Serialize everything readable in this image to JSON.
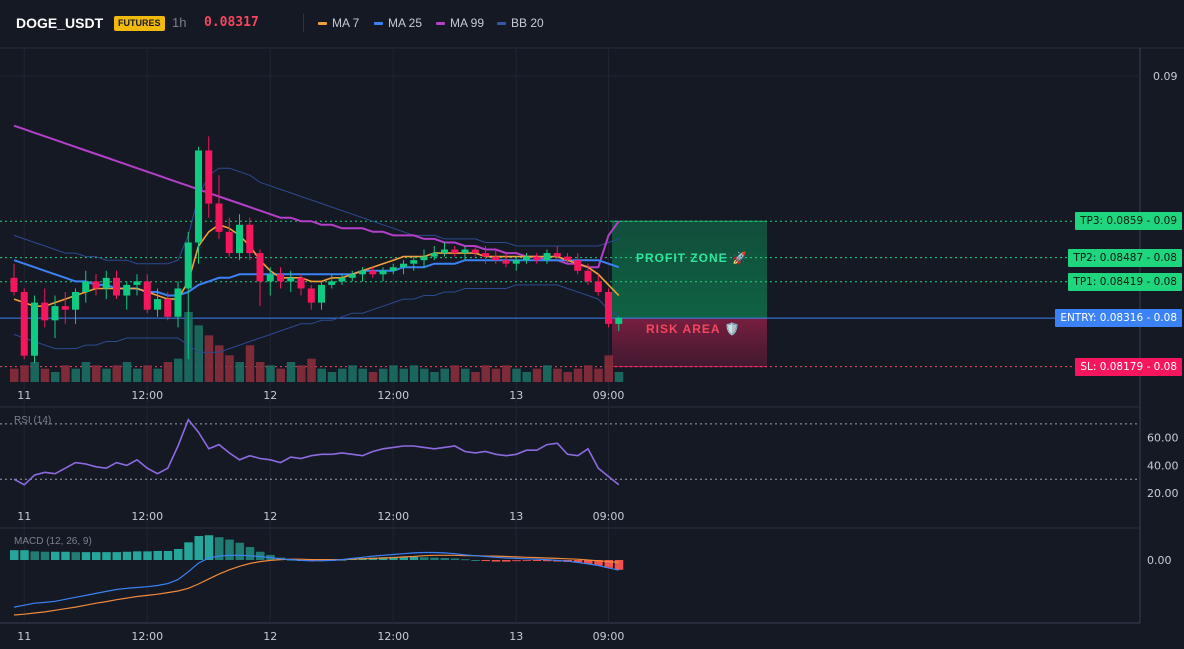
{
  "header": {
    "symbol": "DOGE_USDT",
    "badge": "FUTURES",
    "timeframe": "1h",
    "price": "0.08317",
    "legend": [
      {
        "label": "MA 7",
        "color": "#f0a13a"
      },
      {
        "label": "MA 25",
        "color": "#3b82f6"
      },
      {
        "label": "MA 99",
        "color": "#b43fc8"
      },
      {
        "label": "BB 20",
        "color": "#3557a8"
      }
    ]
  },
  "chart_data": [
    {
      "type": "candlestick",
      "y_axis_ticks": [
        "0.09"
      ],
      "x_ticks": [
        "11",
        "12:00",
        "12",
        "12:00",
        "13",
        "09:00"
      ],
      "candles": [
        [
          0.0843,
          0.0847,
          0.0838,
          0.0839
        ],
        [
          0.0839,
          0.084,
          0.082,
          0.0821
        ],
        [
          0.0821,
          0.0838,
          0.0819,
          0.0836
        ],
        [
          0.0836,
          0.084,
          0.0829,
          0.0831
        ],
        [
          0.0831,
          0.0838,
          0.0826,
          0.0835
        ],
        [
          0.0835,
          0.0839,
          0.083,
          0.0834
        ],
        [
          0.0834,
          0.084,
          0.083,
          0.0839
        ],
        [
          0.0839,
          0.0845,
          0.0836,
          0.0842
        ],
        [
          0.0842,
          0.0844,
          0.0838,
          0.084
        ],
        [
          0.084,
          0.0845,
          0.0837,
          0.0843
        ],
        [
          0.0843,
          0.0845,
          0.0837,
          0.0838
        ],
        [
          0.0838,
          0.0842,
          0.0834,
          0.0841
        ],
        [
          0.0841,
          0.0844,
          0.0838,
          0.0842
        ],
        [
          0.0842,
          0.0844,
          0.0833,
          0.0834
        ],
        [
          0.0834,
          0.084,
          0.0832,
          0.0837
        ],
        [
          0.0837,
          0.0839,
          0.0831,
          0.0832
        ],
        [
          0.0832,
          0.0842,
          0.0829,
          0.084
        ],
        [
          0.084,
          0.0856,
          0.082,
          0.0853
        ],
        [
          0.0853,
          0.088,
          0.0847,
          0.0879
        ],
        [
          0.0879,
          0.0883,
          0.086,
          0.0864
        ],
        [
          0.0864,
          0.0872,
          0.0854,
          0.0856
        ],
        [
          0.0856,
          0.086,
          0.0849,
          0.085
        ],
        [
          0.085,
          0.0861,
          0.0848,
          0.0858
        ],
        [
          0.0858,
          0.086,
          0.0848,
          0.085
        ],
        [
          0.085,
          0.0851,
          0.0835,
          0.0842
        ],
        [
          0.0842,
          0.0846,
          0.0838,
          0.0844
        ],
        [
          0.0844,
          0.0846,
          0.084,
          0.0842
        ],
        [
          0.0842,
          0.0845,
          0.0839,
          0.0843
        ],
        [
          0.0843,
          0.0844,
          0.0838,
          0.084
        ],
        [
          0.084,
          0.0841,
          0.0834,
          0.0836
        ],
        [
          0.0836,
          0.0842,
          0.0834,
          0.0841
        ],
        [
          0.0841,
          0.0844,
          0.084,
          0.0842
        ],
        [
          0.0842,
          0.0844,
          0.0841,
          0.0843
        ],
        [
          0.0843,
          0.0845,
          0.0842,
          0.0844
        ],
        [
          0.0844,
          0.0846,
          0.0842,
          0.0845
        ],
        [
          0.0845,
          0.0846,
          0.0843,
          0.0844
        ],
        [
          0.0844,
          0.0846,
          0.0842,
          0.0845
        ],
        [
          0.0845,
          0.0847,
          0.0844,
          0.0846
        ],
        [
          0.0846,
          0.0848,
          0.0844,
          0.0847
        ],
        [
          0.0847,
          0.0849,
          0.0845,
          0.0848
        ],
        [
          0.0848,
          0.0851,
          0.0846,
          0.0849
        ],
        [
          0.0849,
          0.0852,
          0.0848,
          0.085
        ],
        [
          0.085,
          0.0853,
          0.0849,
          0.0851
        ],
        [
          0.0851,
          0.0852,
          0.0849,
          0.085
        ],
        [
          0.085,
          0.0852,
          0.0848,
          0.0851
        ],
        [
          0.0851,
          0.0852,
          0.0849,
          0.085
        ],
        [
          0.085,
          0.0852,
          0.0847,
          0.0849
        ],
        [
          0.0849,
          0.0851,
          0.0847,
          0.0848
        ],
        [
          0.0848,
          0.085,
          0.0846,
          0.0847
        ],
        [
          0.0847,
          0.0849,
          0.0845,
          0.0848
        ],
        [
          0.0848,
          0.085,
          0.0847,
          0.0849
        ],
        [
          0.0849,
          0.085,
          0.0847,
          0.0848
        ],
        [
          0.0848,
          0.0851,
          0.0847,
          0.085
        ],
        [
          0.085,
          0.0852,
          0.0848,
          0.0849
        ],
        [
          0.0849,
          0.085,
          0.0847,
          0.0848
        ],
        [
          0.0848,
          0.085,
          0.0844,
          0.0845
        ],
        [
          0.0845,
          0.0847,
          0.0841,
          0.0842
        ],
        [
          0.0842,
          0.0844,
          0.0838,
          0.0839
        ],
        [
          0.0839,
          0.084,
          0.0829,
          0.083
        ],
        [
          0.083,
          0.0832,
          0.0828,
          0.08317
        ]
      ],
      "volume": [
        4,
        5,
        6,
        4,
        3,
        5,
        4,
        6,
        5,
        4,
        5,
        6,
        4,
        5,
        4,
        6,
        7,
        21,
        17,
        14,
        11,
        8,
        6,
        11,
        6,
        5,
        4,
        6,
        5,
        7,
        4,
        3,
        4,
        5,
        4,
        3,
        4,
        5,
        4,
        5,
        4,
        3,
        4,
        5,
        4,
        3,
        5,
        4,
        5,
        4,
        3,
        4,
        5,
        4,
        3,
        4,
        5,
        4,
        8,
        3
      ],
      "ma7": [
        0.0837,
        0.0836,
        0.0835,
        0.0835,
        0.0836,
        0.0837,
        0.0838,
        0.0839,
        0.084,
        0.084,
        0.084,
        0.084,
        0.084,
        0.0839,
        0.0838,
        0.0837,
        0.0837,
        0.0842,
        0.0852,
        0.0856,
        0.0858,
        0.0857,
        0.0855,
        0.0852,
        0.0848,
        0.0845,
        0.0843,
        0.0843,
        0.0843,
        0.0842,
        0.0842,
        0.0843,
        0.0843,
        0.0844,
        0.0845,
        0.0846,
        0.0847,
        0.0848,
        0.0849,
        0.0849,
        0.0849,
        0.085,
        0.085,
        0.085,
        0.085,
        0.085,
        0.0849,
        0.0849,
        0.0849,
        0.0849,
        0.0849,
        0.0849,
        0.0849,
        0.0849,
        0.0848,
        0.0847,
        0.0846,
        0.0844,
        0.0841,
        0.0838
      ],
      "ma25": [
        0.0848,
        0.0847,
        0.0846,
        0.0845,
        0.0844,
        0.0843,
        0.0842,
        0.0842,
        0.0841,
        0.0841,
        0.084,
        0.084,
        0.084,
        0.0839,
        0.0839,
        0.0838,
        0.0838,
        0.0839,
        0.0841,
        0.0842,
        0.0843,
        0.0843,
        0.0844,
        0.0844,
        0.0844,
        0.0844,
        0.0844,
        0.0844,
        0.0844,
        0.0844,
        0.0844,
        0.0844,
        0.0844,
        0.0844,
        0.0845,
        0.0845,
        0.0845,
        0.0845,
        0.0846,
        0.0846,
        0.0846,
        0.0847,
        0.0847,
        0.0847,
        0.0848,
        0.0848,
        0.0848,
        0.0848,
        0.0848,
        0.0848,
        0.0848,
        0.0848,
        0.0848,
        0.0848,
        0.0848,
        0.0848,
        0.0848,
        0.0848,
        0.0847,
        0.0846
      ],
      "ma99": [
        0.0886,
        0.0885,
        0.0884,
        0.0883,
        0.0882,
        0.0881,
        0.088,
        0.0879,
        0.0878,
        0.0877,
        0.0876,
        0.0875,
        0.0874,
        0.0873,
        0.0872,
        0.0871,
        0.087,
        0.0869,
        0.0868,
        0.0867,
        0.0866,
        0.0865,
        0.0864,
        0.0863,
        0.0862,
        0.0861,
        0.086,
        0.086,
        0.0859,
        0.0859,
        0.0858,
        0.0858,
        0.0857,
        0.0857,
        0.0857,
        0.0856,
        0.0856,
        0.0855,
        0.0855,
        0.0855,
        0.0854,
        0.0854,
        0.0853,
        0.0853,
        0.0852,
        0.0852,
        0.0851,
        0.0851,
        0.085,
        0.085,
        0.0849,
        0.0849,
        0.0848,
        0.0848,
        0.0847,
        0.0847,
        0.0846,
        0.0846,
        0.0855,
        0.0859
      ],
      "bb_upper": [
        0.0855,
        0.0854,
        0.0853,
        0.0852,
        0.0851,
        0.085,
        0.085,
        0.0849,
        0.0849,
        0.0848,
        0.0848,
        0.0848,
        0.0847,
        0.0847,
        0.0847,
        0.0847,
        0.0848,
        0.0855,
        0.0866,
        0.0872,
        0.0874,
        0.0874,
        0.0873,
        0.0872,
        0.087,
        0.0869,
        0.0868,
        0.0867,
        0.0866,
        0.0865,
        0.0864,
        0.0863,
        0.0862,
        0.0861,
        0.086,
        0.0859,
        0.0858,
        0.0857,
        0.0856,
        0.0855,
        0.0855,
        0.0855,
        0.0854,
        0.0854,
        0.0854,
        0.0854,
        0.0853,
        0.0853,
        0.0853,
        0.0852,
        0.0852,
        0.0852,
        0.0852,
        0.0852,
        0.0852,
        0.0852,
        0.0852,
        0.0852,
        0.0853,
        0.0854
      ],
      "bb_lower": [
        0.0827,
        0.0826,
        0.0825,
        0.0824,
        0.0823,
        0.0823,
        0.0823,
        0.0824,
        0.0824,
        0.0825,
        0.0825,
        0.0826,
        0.0826,
        0.0826,
        0.0826,
        0.0826,
        0.0826,
        0.0824,
        0.0822,
        0.0822,
        0.0822,
        0.0823,
        0.0824,
        0.0825,
        0.0826,
        0.0827,
        0.0828,
        0.0829,
        0.083,
        0.083,
        0.0831,
        0.0831,
        0.0832,
        0.0833,
        0.0833,
        0.0834,
        0.0835,
        0.0836,
        0.0837,
        0.0837,
        0.0838,
        0.0838,
        0.0839,
        0.0839,
        0.084,
        0.084,
        0.084,
        0.084,
        0.084,
        0.0841,
        0.0841,
        0.0841,
        0.0841,
        0.0841,
        0.084,
        0.0839,
        0.0838,
        0.0837,
        0.0834,
        0.0832
      ],
      "levels": [
        {
          "key": "tp3",
          "price": 0.0859,
          "label": "TP3: 0.0859 - 0.09",
          "kind": "tp"
        },
        {
          "key": "tp2",
          "price": 0.08487,
          "label": "TP2: 0.08487 - 0.08",
          "kind": "tp"
        },
        {
          "key": "tp1",
          "price": 0.08419,
          "label": "TP1: 0.08419 - 0.08",
          "kind": "tp"
        },
        {
          "key": "entry",
          "price": 0.08316,
          "label": "ENTRY: 0.08316 - 0.08",
          "kind": "entry"
        },
        {
          "key": "sl",
          "price": 0.08179,
          "label": "SL: 0.08179 - 0.08",
          "kind": "sl"
        }
      ],
      "zones": {
        "profit_label": "PROFIT ZONE 🚀",
        "risk_label": "RISK AREA 🛡️",
        "profit_top": 0.0859,
        "entry": 0.08316,
        "stop": 0.08179
      }
    },
    {
      "type": "line",
      "title": "RSI (14)",
      "y_ticks": [
        "60.00",
        "40.00",
        "20.00"
      ],
      "levels": [
        70,
        30
      ],
      "x_ticks": [
        "11",
        "12:00",
        "12",
        "12:00",
        "13",
        "09:00"
      ],
      "values": [
        30,
        26,
        33,
        35,
        34,
        38,
        42,
        41,
        39,
        38,
        42,
        40,
        44,
        38,
        34,
        38,
        54,
        73,
        64,
        52,
        55,
        49,
        44,
        47,
        45,
        44,
        42,
        46,
        45,
        47,
        48,
        48,
        49,
        48,
        47,
        50,
        52,
        53,
        54,
        54,
        53,
        52,
        53,
        54,
        50,
        49,
        50,
        48,
        47,
        48,
        51,
        51,
        55,
        56,
        48,
        47,
        52,
        38,
        32,
        26
      ]
    },
    {
      "type": "bar",
      "title": "MACD (12, 26, 9)",
      "y_ticks": [
        "0.00"
      ],
      "x_ticks": [
        "11",
        "12:00",
        "12",
        "12:00",
        "13",
        "09:00"
      ],
      "histogram": [
        0.00025,
        0.00025,
        0.00022,
        0.00021,
        0.00021,
        0.00021,
        0.0002,
        0.0002,
        0.0002,
        0.0002,
        0.0002,
        0.00021,
        0.00022,
        0.00022,
        0.00023,
        0.00023,
        0.00028,
        0.00045,
        0.00061,
        0.00063,
        0.00058,
        0.00052,
        0.00044,
        0.00033,
        0.00021,
        0.00013,
        6e-05,
        1e-05,
        -2e-05,
        -3e-05,
        -2e-05,
        -1e-05,
        1e-05,
        3e-05,
        5e-05,
        6e-05,
        7e-05,
        8e-05,
        8e-05,
        8e-05,
        7e-05,
        6e-05,
        5e-05,
        4e-05,
        2e-05,
        0.0,
        -2e-05,
        -4e-05,
        -4e-05,
        -3e-05,
        -2e-05,
        -2e-05,
        -3e-05,
        -4e-05,
        -5e-05,
        -7e-05,
        -0.0001,
        -0.00014,
        -0.0002,
        -0.00025
      ],
      "macd": [
        -0.0012,
        -0.00115,
        -0.0011,
        -0.00108,
        -0.00105,
        -0.001,
        -0.00095,
        -0.0009,
        -0.00085,
        -0.0008,
        -0.00075,
        -0.00072,
        -0.0007,
        -0.00068,
        -0.00065,
        -0.0006,
        -0.0005,
        -0.0003,
        -8e-05,
        5e-05,
        0.0001,
        0.00012,
        0.00012,
        0.00011,
        9e-05,
        6e-05,
        3e-05,
        1e-05,
        -1e-05,
        -2e-05,
        -2e-05,
        -1e-05,
        1e-05,
        4e-05,
        7e-05,
        0.0001,
        0.00012,
        0.00014,
        0.00016,
        0.00018,
        0.00019,
        0.00019,
        0.00018,
        0.00016,
        0.00013,
        0.00011,
        9e-05,
        7e-05,
        5e-05,
        4e-05,
        3e-05,
        2e-05,
        1e-05,
        -1e-05,
        -3e-05,
        -6e-05,
        -0.0001,
        -0.00014,
        -0.0002,
        -0.00026
      ],
      "signal": [
        -0.0014,
        -0.00138,
        -0.00135,
        -0.00132,
        -0.00128,
        -0.00124,
        -0.0012,
        -0.00115,
        -0.0011,
        -0.00106,
        -0.00101,
        -0.00097,
        -0.00093,
        -0.0009,
        -0.00087,
        -0.00083,
        -0.00079,
        -0.00072,
        -0.00061,
        -0.00048,
        -0.00036,
        -0.00025,
        -0.00016,
        -9e-05,
        -4e-05,
        -1e-05,
        1e-05,
        2e-05,
        2e-05,
        1e-05,
        1e-05,
        1e-05,
        1e-05,
        2e-05,
        3e-05,
        4e-05,
        5e-05,
        6e-05,
        8e-05,
        9e-05,
        0.00011,
        0.00012,
        0.00012,
        0.00012,
        0.00011,
        0.00011,
        0.0001,
        0.0001,
        9e-05,
        8e-05,
        7e-05,
        6e-05,
        5e-05,
        4e-05,
        3e-05,
        2e-05,
        0.0,
        -2e-05,
        -4e-05,
        -6e-05
      ]
    }
  ]
}
